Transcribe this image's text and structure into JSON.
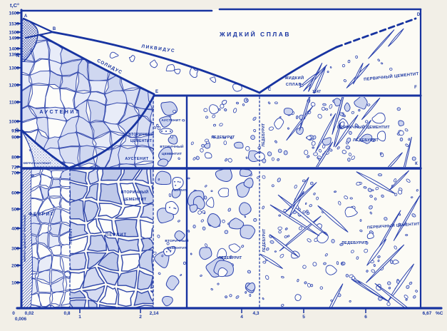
{
  "diagram": {
    "kind": "iron-carbon phase diagram with microstructures",
    "axes": {
      "y_title": "t,C°",
      "x_unit": "%С",
      "y_ticks": [
        "1600",
        "1539",
        "1500",
        "1499",
        "1400",
        "1392",
        "1300",
        "1200",
        "1100",
        "1000",
        "910",
        "900",
        "800",
        "727",
        "700",
        "600",
        "500",
        "400",
        "300",
        "200",
        "100"
      ],
      "x_ticks": [
        "0",
        "0,006",
        "0,02",
        "0,8",
        "1",
        "2",
        "2,14",
        "4",
        "4,3",
        "5",
        "6",
        "6,67"
      ]
    },
    "annotations": {
      "eutectic_temp": "1147"
    },
    "regions": {
      "liquid": "ЖИДКИЙ СПЛАВ",
      "liquidus": "ЛИКВИДУС",
      "solidus": "СОЛИДУС",
      "liquid_word1": "ЖИДКИЙ",
      "liquid_word2": "СПЛАВ",
      "primary_cementite": "ПЕРВИЧНЫЙ ЦЕМЕНТИТ",
      "austenite": "АУСТЕНИТ",
      "secondary_cementite_w1": "ВТОРИЧНЫЙ",
      "secondary_cementite_w2": "ЦЕМЕНТИТ",
      "ledeburite": "ЛЕДЕБУРИТ",
      "ferrite": "ФЕРРИТ",
      "perlite": "ПЕРЛИТ",
      "ferrite_austenite": "ФЕРРИТ+АУСТЕНИТ",
      "ferrite_tertiary": "ФЕРРИТ+ЦЕМЕНТИТ ТРЕТИЧНЫЙ"
    },
    "points": {
      "A": "А",
      "B": "В",
      "N": "N",
      "J": "I",
      "G": "G",
      "P": "Р",
      "E": "Е",
      "C": "С",
      "D": "D",
      "F": "F",
      "K": "К"
    },
    "colors": {
      "line_blue": "#1733a0",
      "grain_fill": "#ccd4ee",
      "background": "#f2efe7",
      "paper": "#fcfbf5"
    }
  }
}
